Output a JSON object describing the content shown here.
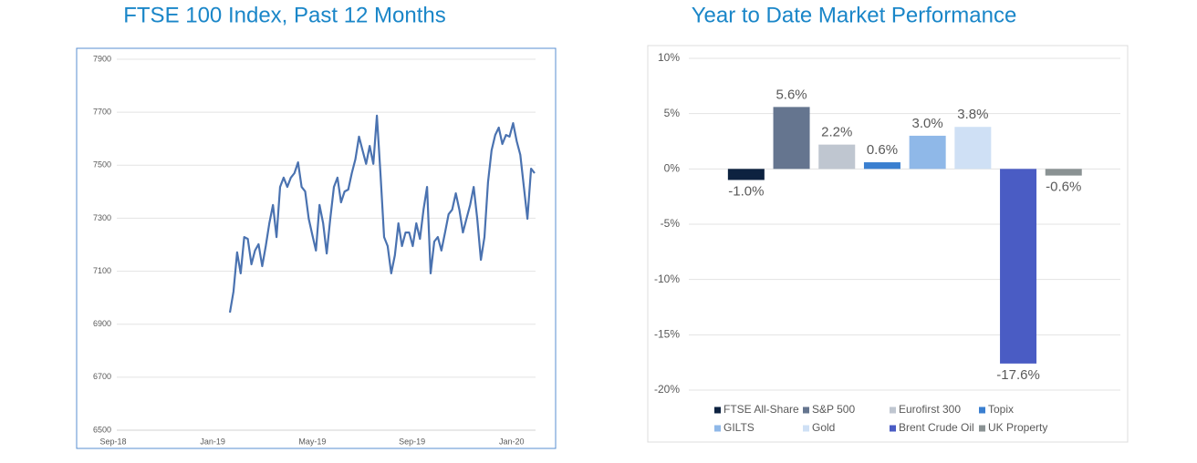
{
  "chart_data": [
    {
      "type": "line",
      "title": "FTSE 100 Index, Past 12 Months",
      "color": "#4a72b0",
      "ylim": [
        6500,
        7900
      ],
      "yticks": [
        6500,
        6700,
        6900,
        7100,
        7300,
        7500,
        7700,
        7900
      ],
      "xticks": [
        "Sep-18",
        "Jan-19",
        "May-19",
        "Sep-19",
        "Jan-20"
      ],
      "grid": true,
      "values": [
        6944,
        7023,
        7171,
        7092,
        7229,
        7222,
        7126,
        7178,
        7202,
        7119,
        7195,
        7281,
        7350,
        7229,
        7418,
        7453,
        7418,
        7453,
        7470,
        7511,
        7418,
        7401,
        7298,
        7236,
        7178,
        7350,
        7281,
        7167,
        7298,
        7418,
        7453,
        7360,
        7401,
        7408,
        7470,
        7522,
        7608,
        7556,
        7505,
        7573,
        7505,
        7687,
        7470,
        7229,
        7195,
        7092,
        7160,
        7281,
        7195,
        7246,
        7246,
        7195,
        7281,
        7222,
        7332,
        7418,
        7092,
        7212,
        7229,
        7178,
        7246,
        7315,
        7332,
        7394,
        7332,
        7246,
        7298,
        7350,
        7418,
        7298,
        7143,
        7229,
        7436,
        7556,
        7614,
        7642,
        7580,
        7614,
        7608,
        7659,
        7590,
        7539,
        7418,
        7298,
        7487,
        7470
      ]
    },
    {
      "type": "bar",
      "title": "Year to Date Market Performance",
      "categories": [
        "FTSE All-Share",
        "S&P 500",
        "Eurofirst 300",
        "Topix",
        "GILTS",
        "Gold",
        "Brent Crude Oil",
        "UK Property"
      ],
      "values": [
        -1.0,
        5.6,
        2.2,
        0.6,
        3.0,
        3.8,
        -17.6,
        -0.6
      ],
      "value_labels": [
        "-1.0%",
        "5.6%",
        "2.2%",
        "0.6%",
        "3.0%",
        "3.8%",
        "-17.6%",
        "-0.6%"
      ],
      "colors": [
        "#0d2240",
        "#65758f",
        "#bfc6d0",
        "#3a7fd0",
        "#8fb8e8",
        "#cfe0f5",
        "#4a5cc4",
        "#8a9293"
      ],
      "ylim": [
        -20,
        10
      ],
      "yticks": [
        {
          "value": -20,
          "label": "-20%"
        },
        {
          "value": -15,
          "label": "-15%"
        },
        {
          "value": -10,
          "label": "-10%"
        },
        {
          "value": -5,
          "label": "-5%"
        },
        {
          "value": 0,
          "label": "0%"
        },
        {
          "value": 5,
          "label": "5%"
        },
        {
          "value": 10,
          "label": "10%"
        }
      ],
      "grid": true,
      "legend": "bottom"
    }
  ]
}
